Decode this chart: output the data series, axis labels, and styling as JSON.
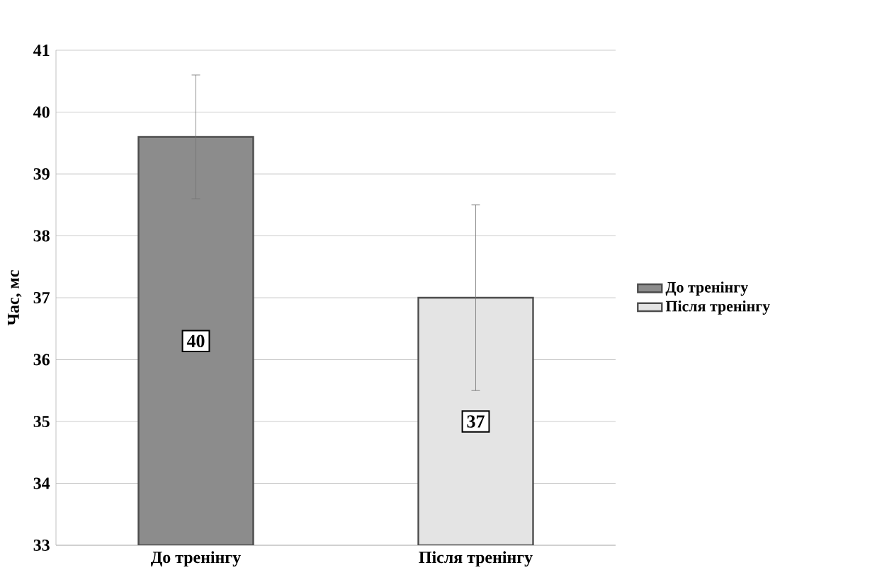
{
  "chart_data": {
    "type": "bar",
    "categories": [
      "До тренінгу",
      "Після тренінгу"
    ],
    "ylabel": "Час, мс",
    "ylim": [
      33,
      41
    ],
    "yticks": [
      33,
      34,
      35,
      36,
      37,
      38,
      39,
      40,
      41
    ],
    "grid": "y",
    "legend": "right",
    "series": [
      {
        "name": "До тренінгу",
        "color": "#8c8c8c",
        "values": [
          39.6,
          null
        ],
        "errors": [
          1.0,
          null
        ],
        "value_labels": [
          "40",
          null
        ]
      },
      {
        "name": "Після тренінгу",
        "color": "#e4e4e4",
        "values": [
          null,
          37.0
        ],
        "errors": [
          null,
          1.5
        ],
        "value_labels": [
          null,
          "37"
        ]
      }
    ]
  }
}
